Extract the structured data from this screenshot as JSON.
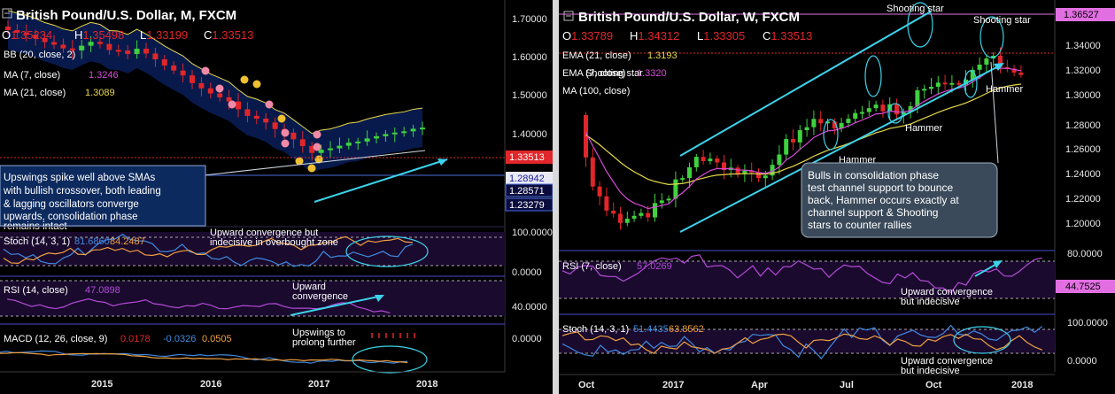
{
  "chart_data": [
    {
      "type": "candlestick",
      "title": "British Pound/U.S. Dollar, M, FXCM",
      "ohlc": {
        "o_label": "O",
        "o": "1.35234",
        "h_label": "H",
        "h": "1.35498",
        "l_label": "L",
        "l": "1.33199",
        "c_label": "C",
        "c": "1.33513"
      },
      "price_axis": {
        "ticks": [
          "1.70000",
          "1.60000",
          "1.50000",
          "1.40000"
        ],
        "ylim": [
          1.19,
          1.74
        ]
      },
      "x_ticks": [
        "2015",
        "2016",
        "2017",
        "2018"
      ],
      "indicators": [
        {
          "label": "BB (20, close, 2)",
          "value": ""
        },
        {
          "label": "MA (7, close)",
          "value": "1.3246",
          "color": "#d94bd9"
        },
        {
          "label": "MA (21, close)",
          "value": "1.3089",
          "color": "#e8d84a"
        }
      ],
      "price_labels": [
        {
          "value": "1.33513",
          "bg": "#e0262a",
          "fg": "#ffffff"
        },
        {
          "value": "1.28942",
          "bg": "#e9e9f5",
          "fg": "#1a1a9a"
        },
        {
          "value": "1.28571",
          "bg": "#0b0b3d",
          "fg": "#ffffff"
        },
        {
          "value": "1.23279",
          "bg": "#0b0b3d",
          "fg": "#ffffff"
        }
      ],
      "commentary": [
        "Upswings spike well above SMAs",
        "with bullish crossover, both leading",
        "& lagging oscillators converge",
        "upwards, consolidation phase",
        "remains intact"
      ],
      "stoch": {
        "label": "Stoch (14, 3, 1)",
        "k": "81.6860",
        "d": "84.2487",
        "ticks": [
          "100.0000",
          "0.0000"
        ],
        "annotation": [
          "Upward convergence but",
          "indecisive in overbought zone"
        ]
      },
      "rsi": {
        "label": "RSI (14, close)",
        "value": "47.0898",
        "ticks": [
          "40.0000"
        ],
        "annotation": [
          "Upward",
          "convergence"
        ]
      },
      "macd": {
        "label": "MACD (12, 26, close, 9)",
        "macd": "0.0178",
        "signal": "-0.0326",
        "hist": "0.0505",
        "ticks": [
          "0.0000"
        ],
        "annotation": [
          "Upswings to",
          "prolong further"
        ]
      }
    },
    {
      "type": "candlestick",
      "title": "British Pound/U.S. Dollar, W, FXCM",
      "ohlc": {
        "o_label": "O",
        "o": "1.33789",
        "h_label": "H",
        "h": "1.34312",
        "l_label": "L",
        "l": "1.33305",
        "c_label": "C",
        "c": "1.33513"
      },
      "price_axis": {
        "ticks": [
          "1.34000",
          "1.32000",
          "1.30000",
          "1.28000",
          "1.26000",
          "1.24000",
          "1.22000",
          "1.20000"
        ],
        "ylim": [
          1.19,
          1.372
        ]
      },
      "x_ticks": [
        "Oct",
        "2017",
        "Apr",
        "Jul",
        "Oct",
        "2018"
      ],
      "indicators": [
        {
          "label": "EMA (21, close)",
          "value": "1.3193",
          "color": "#e8d84a"
        },
        {
          "label": "EMA (7, close)",
          "value": "1.3320",
          "color": "#d94bd9"
        },
        {
          "label": "MA (100, close)",
          "value": ""
        }
      ],
      "price_labels": [
        {
          "value": "1.36527",
          "bg": "#e26fe2",
          "fg": "#000000"
        }
      ],
      "annotations": [
        "Shooting star",
        "Shooting star",
        "Shooting star",
        "Hammer",
        "Hammer",
        "Hammer"
      ],
      "commentary": [
        "Bulls in consolidation phase",
        "test channel support to bounce",
        "back, Hammer occurs exactly at",
        "channel support & Shooting",
        "stars to counter rallies"
      ],
      "rsi": {
        "label": "RSI (7, close)",
        "value": "57.0269",
        "ticks": [
          "80.0000"
        ],
        "badge": "44.7525",
        "annotation": [
          "Upward convergence",
          "but indecisive"
        ]
      },
      "stoch": {
        "label": "Stoch (14, 3, 1)",
        "k": "51.4435",
        "d": "63.8562",
        "ticks": [
          "100.0000",
          "0.0000"
        ],
        "annotation": [
          "Upward convergence",
          "but indecisive"
        ]
      }
    }
  ],
  "colors": {
    "bg": "#000000",
    "up": "#3fd13f",
    "down": "#e0262a",
    "bb_fill": "#0e2f8a",
    "cyan": "#3cd2ea",
    "axis_text": "#e6e6e6",
    "pane": "#1a0a2e"
  }
}
